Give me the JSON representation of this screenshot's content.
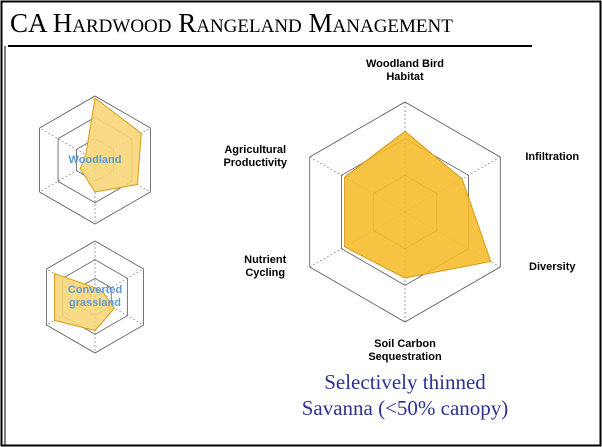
{
  "slide": {
    "title": "CA Hardwood Rangeland Management"
  },
  "chart_data": [
    {
      "type": "radar",
      "label": "Woodland",
      "rlim": [
        0,
        3
      ],
      "rticks": [
        1,
        2,
        3
      ],
      "color": "#f8d77a",
      "series": [
        {
          "values": [
            2.9,
            2.5,
            2.3,
            1.5,
            0.8,
            0.5
          ]
        }
      ]
    },
    {
      "type": "radar",
      "label": "Converted grassland",
      "rlim": [
        0,
        3
      ],
      "rticks": [
        1,
        2,
        3
      ],
      "color": "#f8d77a",
      "series": [
        {
          "values": [
            0.5,
            0.5,
            1.2,
            1.8,
            2.5,
            2.5
          ]
        }
      ]
    },
    {
      "type": "radar",
      "rlim": [
        0,
        3
      ],
      "rticks": [
        1,
        2,
        3
      ],
      "color": "#f5bd2e",
      "categories": [
        "Woodland Bird Habitat",
        "Infiltration",
        "Diversity",
        "Soil Carbon Sequestration",
        "Nutrient Cycling",
        "Agricultural Productivity"
      ],
      "series": [
        {
          "values": [
            2.2,
            1.8,
            2.7,
            1.8,
            1.9,
            1.9
          ]
        }
      ],
      "caption": [
        "Selectively thinned",
        "Savanna (<50% canopy)"
      ]
    }
  ]
}
